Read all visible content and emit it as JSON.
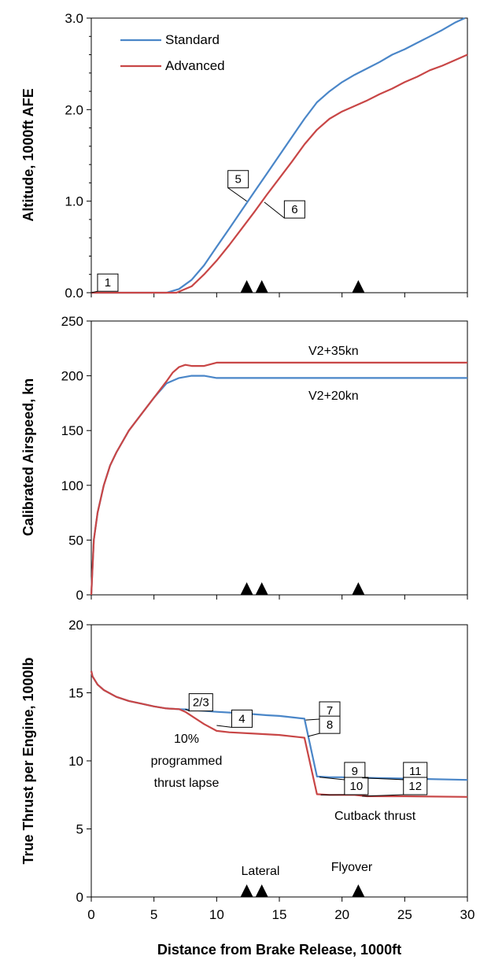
{
  "colors": {
    "standard": "#4a86c8",
    "advanced": "#c84646",
    "axis": "#000000"
  },
  "chart_data": [
    {
      "type": "line",
      "ylabel": "Altitude, 1000ft AFE",
      "xlim": [
        0,
        30
      ],
      "ylim": [
        0,
        3
      ],
      "yticks": [
        0,
        1,
        2,
        3
      ],
      "ytick_labels": [
        "0.0",
        "1.0",
        "2.0",
        "3.0"
      ],
      "minor_yticks": [
        0.2,
        0.4,
        0.6,
        0.8,
        1.2,
        1.4,
        1.6,
        1.8,
        2.2,
        2.4,
        2.6,
        2.8
      ],
      "legend": {
        "placement": "top-left",
        "entries": [
          "Standard",
          "Advanced"
        ]
      },
      "series": [
        {
          "name": "Standard",
          "color": "#4a86c8",
          "x": [
            0,
            6,
            7,
            8,
            9,
            10,
            11,
            12,
            13,
            14,
            15,
            16,
            17,
            18,
            19,
            20,
            21,
            22,
            23,
            24,
            25,
            26,
            27,
            28,
            29,
            29.8
          ],
          "y": [
            0,
            0,
            0.04,
            0.14,
            0.3,
            0.5,
            0.7,
            0.9,
            1.1,
            1.3,
            1.5,
            1.7,
            1.9,
            2.08,
            2.2,
            2.3,
            2.38,
            2.45,
            2.52,
            2.6,
            2.66,
            2.73,
            2.8,
            2.87,
            2.95,
            3.0
          ]
        },
        {
          "name": "Advanced",
          "color": "#c84646",
          "x": [
            0,
            6.8,
            8,
            9,
            10,
            11,
            12,
            13,
            14,
            15,
            16,
            17,
            18,
            19,
            20,
            21,
            22,
            23,
            24,
            25,
            26,
            27,
            28,
            29,
            30
          ],
          "y": [
            0,
            0,
            0.07,
            0.2,
            0.35,
            0.52,
            0.7,
            0.88,
            1.07,
            1.25,
            1.43,
            1.62,
            1.78,
            1.9,
            1.98,
            2.04,
            2.1,
            2.17,
            2.23,
            2.3,
            2.36,
            2.43,
            2.48,
            2.54,
            2.6
          ]
        }
      ],
      "markers_x": [
        12.4,
        13.6,
        21.3
      ],
      "callouts": [
        {
          "label": "1",
          "box": [
            0.5,
            0.11
          ],
          "point": [
            0,
            0
          ]
        },
        {
          "label": "5",
          "box": [
            10.9,
            1.24
          ],
          "point": [
            12.4,
            1.0
          ]
        },
        {
          "label": "6",
          "box": [
            15.4,
            0.91
          ],
          "point": [
            13.8,
            0.99
          ]
        }
      ]
    },
    {
      "type": "line",
      "ylabel": "Calibrated Airspeed, kn",
      "xlim": [
        0,
        30
      ],
      "ylim": [
        0,
        250
      ],
      "yticks": [
        0,
        50,
        100,
        150,
        200,
        250
      ],
      "ytick_labels": [
        "0",
        "50",
        "100",
        "150",
        "200",
        "250"
      ],
      "series": [
        {
          "name": "",
          "color": "#4a86c8",
          "x": [
            0,
            0.2,
            0.5,
            1,
            1.5,
            2,
            3,
            4,
            5,
            6,
            7,
            8,
            9,
            10,
            11,
            15,
            20,
            25,
            30
          ],
          "y": [
            0,
            50,
            75,
            100,
            118,
            130,
            150,
            165,
            180,
            193,
            198,
            200,
            200,
            198,
            198,
            198,
            198,
            198,
            198
          ]
        },
        {
          "name": "",
          "color": "#c84646",
          "x": [
            0,
            0.2,
            0.5,
            1,
            1.5,
            2,
            3,
            4,
            5,
            6,
            6.5,
            7,
            7.5,
            8,
            9,
            10,
            12,
            15,
            20,
            25,
            30
          ],
          "y": [
            0,
            50,
            75,
            100,
            118,
            130,
            150,
            165,
            180,
            195,
            203,
            208,
            210,
            209,
            209,
            212,
            212,
            212,
            212,
            212,
            212
          ]
        }
      ],
      "annotations": [
        "V2+35kn",
        "V2+20kn"
      ],
      "markers_x": [
        12.4,
        13.6,
        21.3
      ]
    },
    {
      "type": "line",
      "xlabel": "Distance from Brake Release, 1000ft",
      "ylabel": "True Thrust per Engine, 1000lb",
      "xlim": [
        0,
        30
      ],
      "ylim": [
        0,
        20
      ],
      "yticks": [
        0,
        5,
        10,
        15,
        20
      ],
      "ytick_labels": [
        "0",
        "5",
        "10",
        "15",
        "20"
      ],
      "xticks": [
        0,
        5,
        10,
        15,
        20,
        25,
        30
      ],
      "xtick_labels": [
        "0",
        "5",
        "10",
        "15",
        "20",
        "25",
        "30"
      ],
      "series": [
        {
          "name": "",
          "color": "#4a86c8",
          "x": [
            0,
            0.1,
            0.5,
            1,
            2,
            3,
            4,
            5,
            6,
            7,
            7.5,
            10,
            12,
            14,
            15,
            16,
            17,
            18,
            19,
            20,
            21,
            22,
            25,
            30
          ],
          "y": [
            16.6,
            16.2,
            15.6,
            15.2,
            14.7,
            14.4,
            14.2,
            14.0,
            13.85,
            13.8,
            13.78,
            13.6,
            13.5,
            13.35,
            13.3,
            13.2,
            13.1,
            8.85,
            8.8,
            8.8,
            8.75,
            8.75,
            8.7,
            8.6
          ]
        },
        {
          "name": "",
          "color": "#c84646",
          "x": [
            0,
            0.1,
            0.5,
            1,
            2,
            3,
            4,
            5,
            6,
            7,
            7.5,
            8,
            9,
            10,
            11,
            13,
            15,
            17,
            18,
            19,
            21,
            22,
            25,
            30
          ],
          "y": [
            16.6,
            16.2,
            15.6,
            15.2,
            14.7,
            14.4,
            14.2,
            14.0,
            13.85,
            13.8,
            13.6,
            13.3,
            12.7,
            12.2,
            12.1,
            12.0,
            11.9,
            11.7,
            7.55,
            7.5,
            7.5,
            7.4,
            7.4,
            7.35
          ]
        }
      ],
      "callouts": [
        {
          "label": "2/3",
          "box": [
            7.8,
            14.3
          ],
          "point": [
            7.5,
            13.8
          ]
        },
        {
          "label": "4",
          "box": [
            11.2,
            13.1
          ],
          "point": [
            10,
            12.6
          ]
        },
        {
          "label": "7",
          "box": [
            18.2,
            13.7
          ],
          "point": [
            17.1,
            13.0
          ]
        },
        {
          "label": "8",
          "box": [
            18.2,
            12.65
          ],
          "point": [
            17.3,
            11.8
          ]
        },
        {
          "label": "9",
          "box": [
            20.2,
            9.25
          ],
          "point": [
            18.2,
            8.8
          ]
        },
        {
          "label": "10",
          "box": [
            20.2,
            8.15
          ],
          "point": [
            18.3,
            7.5
          ]
        },
        {
          "label": "11",
          "box": [
            24.9,
            9.25
          ],
          "point": [
            21.6,
            8.75
          ]
        },
        {
          "label": "12",
          "box": [
            24.9,
            8.15
          ],
          "point": [
            21.6,
            7.4
          ]
        }
      ],
      "annotations": [
        "10%",
        "programmed",
        "thrust lapse",
        "Cutback thrust",
        "Lateral",
        "Flyover"
      ],
      "markers_x": [
        12.4,
        13.6,
        21.3
      ]
    }
  ]
}
